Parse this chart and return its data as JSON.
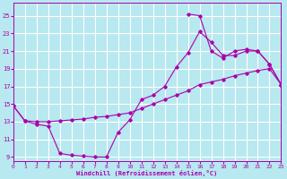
{
  "bg_color": "#b8e8f0",
  "grid_color": "#d0eef4",
  "line_color": "#aa00aa",
  "xlabel": "Windchill (Refroidissement éolien,°C)",
  "xlim": [
    0,
    23
  ],
  "ylim": [
    8.5,
    26.5
  ],
  "xticks": [
    0,
    1,
    2,
    3,
    4,
    5,
    6,
    7,
    8,
    9,
    10,
    11,
    12,
    13,
    14,
    15,
    16,
    17,
    18,
    19,
    20,
    21,
    22,
    23
  ],
  "yticks": [
    9,
    11,
    13,
    15,
    17,
    19,
    21,
    23,
    25
  ],
  "curve1_x": [
    0,
    1,
    2,
    3,
    4,
    5,
    6,
    7,
    8,
    9,
    10,
    11,
    12,
    13,
    14,
    15,
    16,
    17,
    18,
    19,
    20,
    21,
    22,
    23
  ],
  "curve1_y": [
    14.8,
    13.1,
    12.7,
    12.5,
    9.4,
    9.2,
    9.1,
    9.0,
    9.0,
    11.8,
    13.2,
    15.5,
    16.0,
    17.0,
    19.2,
    20.8,
    23.2,
    22.0,
    20.5,
    20.5,
    21.0,
    21.0,
    19.5,
    17.2
  ],
  "curve2_x": [
    0,
    1,
    2,
    3,
    4,
    5,
    6,
    7,
    8,
    9,
    10,
    11,
    12,
    13,
    14,
    15,
    16,
    17,
    18,
    19,
    20,
    21,
    22,
    23
  ],
  "curve2_y": [
    14.8,
    13.1,
    13.0,
    13.0,
    13.1,
    13.2,
    13.3,
    13.5,
    13.6,
    13.8,
    14.0,
    14.5,
    15.0,
    15.5,
    16.0,
    16.5,
    17.2,
    17.5,
    17.8,
    18.2,
    18.5,
    18.8,
    19.0,
    17.2
  ],
  "curve3_x": [
    15,
    16,
    17,
    18,
    19,
    20,
    21,
    22,
    23
  ],
  "curve3_y": [
    25.2,
    25.0,
    21.0,
    20.2,
    21.0,
    21.2,
    21.0,
    19.5,
    17.2
  ]
}
